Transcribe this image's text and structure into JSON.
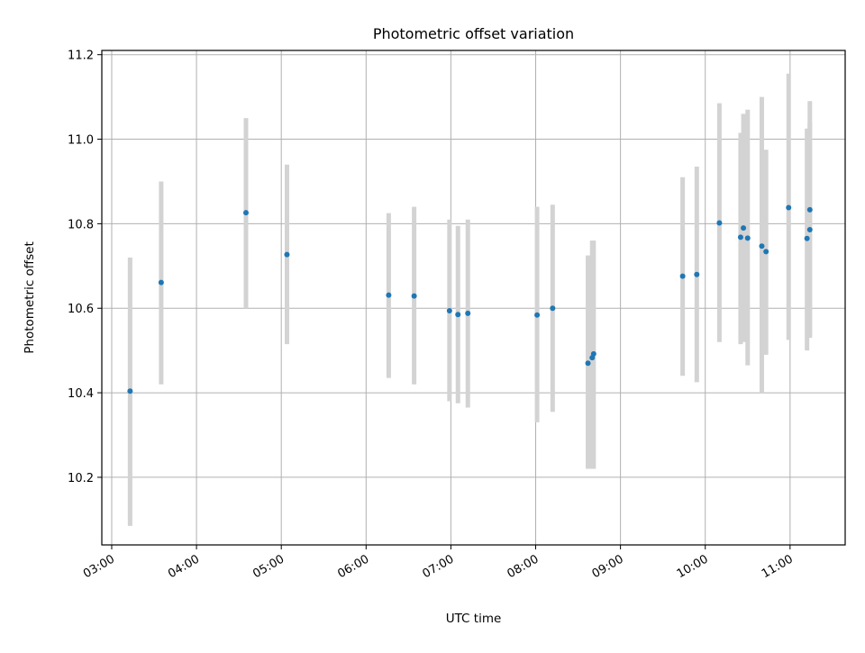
{
  "chart_data": {
    "type": "scatter",
    "title": "Photometric offset variation",
    "xlabel": "UTC time",
    "ylabel": "Photometric offset",
    "grid": true,
    "legend": "none",
    "x_tick_labels": [
      "03:00",
      "04:00",
      "05:00",
      "06:00",
      "07:00",
      "08:00",
      "09:00",
      "10:00",
      "11:00"
    ],
    "y_tick_labels": [
      "10.2",
      "10.4",
      "10.6",
      "10.8",
      "11.0",
      "11.2"
    ],
    "y_ticks": [
      10.2,
      10.4,
      10.6,
      10.8,
      11.0,
      11.2
    ],
    "xlim": [
      "02:53",
      "11:39"
    ],
    "ylim": [
      10.04,
      11.21
    ],
    "colors": {
      "point": "#1f77b4",
      "errorbar": "#d3d3d3",
      "grid": "#b0b0b0"
    },
    "series": [
      {
        "x": [
          "03:13",
          "03:35",
          "04:35",
          "05:04",
          "06:16",
          "06:34",
          "06:59",
          "07:05",
          "07:12",
          "08:01",
          "08:12",
          "08:37",
          "08:40",
          "08:41",
          "09:44",
          "09:54",
          "10:10",
          "10:25",
          "10:27",
          "10:30",
          "10:40",
          "10:43",
          "10:59",
          "11:12",
          "11:14",
          "11:14"
        ],
        "y": [
          10.404,
          10.661,
          10.826,
          10.727,
          10.631,
          10.629,
          10.594,
          10.585,
          10.588,
          10.584,
          10.6,
          10.47,
          10.483,
          10.492,
          10.676,
          10.68,
          10.802,
          10.768,
          10.79,
          10.766,
          10.747,
          10.734,
          10.838,
          10.765,
          10.833,
          10.786
        ],
        "yerr_low": [
          10.085,
          10.42,
          10.6,
          10.515,
          10.435,
          10.42,
          10.38,
          10.375,
          10.365,
          10.33,
          10.355,
          10.22,
          10.22,
          10.22,
          10.44,
          10.425,
          10.52,
          10.515,
          10.52,
          10.465,
          10.4,
          10.49,
          10.525,
          10.5,
          10.53,
          10.535
        ],
        "yerr_high": [
          10.72,
          10.9,
          11.05,
          10.94,
          10.825,
          10.84,
          10.81,
          10.795,
          10.81,
          10.84,
          10.845,
          10.725,
          10.76,
          10.76,
          10.91,
          10.935,
          11.085,
          11.015,
          11.06,
          11.07,
          11.1,
          10.975,
          11.155,
          11.025,
          11.09,
          11.04
        ]
      }
    ]
  }
}
